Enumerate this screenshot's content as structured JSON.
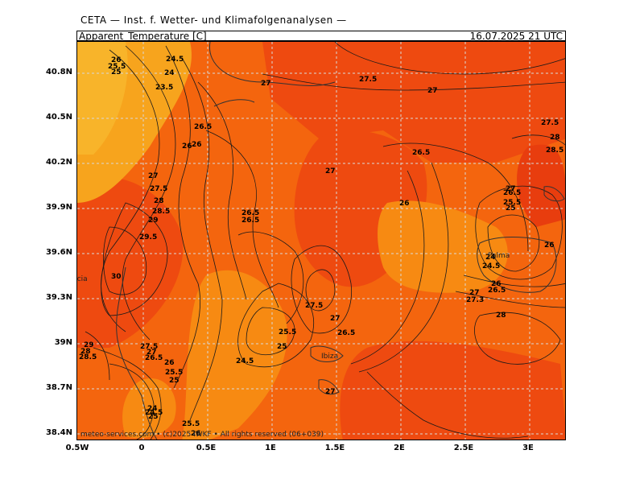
{
  "header": {
    "source": "CETA — Inst. f. Wetter- und Klimafolgenanalysen —",
    "field": "Apparent_Temperature [C]",
    "valid_time": "16.07.2025 21 UTC"
  },
  "axes": {
    "lat_labels": [
      "40.8N",
      "40.5N",
      "40.2N",
      "39.9N",
      "39.6N",
      "39.3N",
      "39N",
      "38.7N",
      "38.4N"
    ],
    "lon_labels": [
      "0.5W",
      "0",
      "0.5E",
      "1E",
      "1.5E",
      "2E",
      "2.5E",
      "3E"
    ]
  },
  "places": [
    "Valencia",
    "Ibiza",
    "Palma"
  ],
  "contour_labels": [
    "26",
    "25.5",
    "25",
    "24.5",
    "24",
    "23.5",
    "27",
    "27.5",
    "26.5",
    "28",
    "28.5",
    "29",
    "29.5",
    "30",
    "27.3"
  ],
  "footer": "meteo-services.com • (c)2025 IWKF • All rights reserved (06+039)",
  "colors": {
    "deep": "#ee4a10",
    "mid": "#f4650e",
    "light": "#f78a12",
    "cool": "#f7a41d",
    "coolest": "#f8b42a",
    "contour": "#1a1a1a",
    "grid": "#d9d9d9"
  }
}
